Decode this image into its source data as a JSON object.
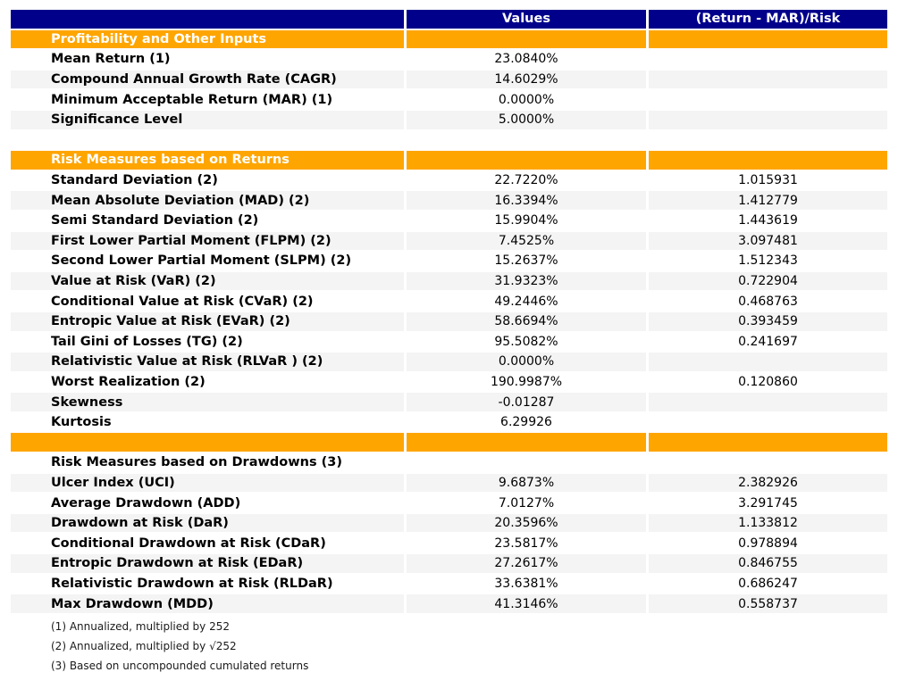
{
  "table": {
    "colors": {
      "header_bg": "#00008B",
      "section_bg": "#FFA500",
      "stripe_bg": "#F4F4F4",
      "header_text": "#FFFFFF",
      "label_text": "#000000"
    },
    "columns": [
      "",
      "Values",
      "(Return - MAR)/Risk"
    ],
    "rows": [
      {
        "type": "section",
        "label": "Profitability and Other Inputs"
      },
      {
        "type": "data",
        "label": "Mean Return (1)",
        "value": "23.0840%",
        "ratio": ""
      },
      {
        "type": "data",
        "label": "Compound Annual Growth Rate (CAGR)",
        "value": "14.6029%",
        "ratio": ""
      },
      {
        "type": "data",
        "label": "Minimum Acceptable Return (MAR) (1)",
        "value": "0.0000%",
        "ratio": ""
      },
      {
        "type": "data",
        "label": "Significance Level",
        "value": "5.0000%",
        "ratio": ""
      },
      {
        "type": "blank"
      },
      {
        "type": "section",
        "label": "Risk Measures based on Returns"
      },
      {
        "type": "data",
        "label": "Standard Deviation (2)",
        "value": "22.7220%",
        "ratio": "1.015931"
      },
      {
        "type": "data",
        "label": "Mean Absolute Deviation (MAD) (2)",
        "value": "16.3394%",
        "ratio": "1.412779"
      },
      {
        "type": "data",
        "label": "Semi Standard Deviation (2)",
        "value": "15.9904%",
        "ratio": "1.443619"
      },
      {
        "type": "data",
        "label": "First Lower Partial Moment (FLPM) (2)",
        "value": "7.4525%",
        "ratio": "3.097481"
      },
      {
        "type": "data",
        "label": "Second Lower Partial Moment (SLPM) (2)",
        "value": "15.2637%",
        "ratio": "1.512343"
      },
      {
        "type": "data",
        "label": "Value at Risk (VaR) (2)",
        "value": "31.9323%",
        "ratio": "0.722904"
      },
      {
        "type": "data",
        "label": "Conditional Value at Risk (CVaR) (2)",
        "value": "49.2446%",
        "ratio": "0.468763"
      },
      {
        "type": "data",
        "label": "Entropic Value at Risk (EVaR) (2)",
        "value": "58.6694%",
        "ratio": "0.393459"
      },
      {
        "type": "data",
        "label": "Tail Gini of Losses (TG) (2)",
        "value": "95.5082%",
        "ratio": "0.241697"
      },
      {
        "type": "data",
        "label": "Relativistic Value at Risk (RLVaR ) (2)",
        "value": "0.0000%",
        "ratio": ""
      },
      {
        "type": "data",
        "label": "Worst Realization (2)",
        "value": "190.9987%",
        "ratio": "0.120860"
      },
      {
        "type": "data",
        "label": "Skewness",
        "value": "-0.01287",
        "ratio": ""
      },
      {
        "type": "data",
        "label": "Kurtosis",
        "value": "6.29926",
        "ratio": ""
      },
      {
        "type": "section",
        "label": ""
      },
      {
        "type": "title",
        "label": "Risk Measures based on Drawdowns (3)",
        "value": "",
        "ratio": ""
      },
      {
        "type": "data",
        "label": "Ulcer Index (UCI)",
        "value": "9.6873%",
        "ratio": "2.382926"
      },
      {
        "type": "data",
        "label": "Average Drawdown (ADD)",
        "value": "7.0127%",
        "ratio": "3.291745"
      },
      {
        "type": "data",
        "label": "Drawdown at Risk (DaR)",
        "value": "20.3596%",
        "ratio": "1.133812"
      },
      {
        "type": "data",
        "label": "Conditional Drawdown at Risk (CDaR)",
        "value": "23.5817%",
        "ratio": "0.978894"
      },
      {
        "type": "data",
        "label": "Entropic Drawdown at Risk (EDaR)",
        "value": "27.2617%",
        "ratio": "0.846755"
      },
      {
        "type": "data",
        "label": "Relativistic Drawdown at Risk (RLDaR)",
        "value": "33.6381%",
        "ratio": "0.686247"
      },
      {
        "type": "data",
        "label": "Max Drawdown (MDD)",
        "value": "41.3146%",
        "ratio": "0.558737"
      }
    ]
  },
  "footnotes": [
    "(1) Annualized, multiplied by 252",
    "(2) Annualized, multiplied by √252",
    "(3) Based on uncompounded cumulated returns"
  ]
}
